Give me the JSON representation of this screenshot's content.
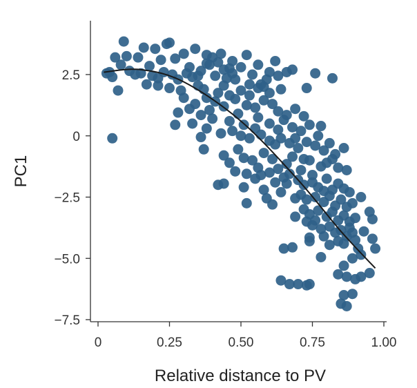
{
  "chart_data": {
    "type": "scatter",
    "xlabel": "Relative distance to PV",
    "ylabel": "PC1",
    "xlim": [
      0,
      1.0
    ],
    "ylim": [
      -7.5,
      4.5
    ],
    "x_ticks": [
      0,
      0.25,
      0.5,
      0.75,
      1.0
    ],
    "x_tick_labels": [
      "0",
      "0.25",
      "0.50",
      "0.75",
      "1.00"
    ],
    "y_ticks": [
      2.5,
      0,
      -2.5,
      -5.0,
      -7.5
    ],
    "y_tick_labels": [
      "2.5",
      "0",
      "−2.5",
      "−5.0",
      "−7.5"
    ],
    "grid": false,
    "legend": "none",
    "colors": {
      "points": "#2f6189",
      "fit_line": "#1a1a1a"
    },
    "fit_curve": {
      "type": "quadratic",
      "description_points": {
        "x": [
          0.02,
          0.15,
          0.3,
          0.5,
          0.7,
          0.85,
          0.97
        ],
        "y": [
          2.6,
          2.7,
          2.2,
          0.6,
          -1.8,
          -3.9,
          -5.4
        ]
      }
    },
    "series": [
      {
        "points": [
          [
            0.09,
            3.85
          ],
          [
            0.25,
            3.8
          ],
          [
            0.24,
            3.75
          ],
          [
            0.16,
            3.6
          ],
          [
            0.2,
            3.55
          ],
          [
            0.34,
            3.55
          ],
          [
            0.3,
            3.35
          ],
          [
            0.43,
            3.35
          ],
          [
            0.52,
            3.3
          ],
          [
            0.38,
            3.3
          ],
          [
            0.1,
            3.25
          ],
          [
            0.06,
            3.2
          ],
          [
            0.14,
            3.2
          ],
          [
            0.22,
            3.1
          ],
          [
            0.27,
            3.15
          ],
          [
            0.4,
            3.2
          ],
          [
            0.47,
            3.05
          ],
          [
            0.62,
            3.05
          ],
          [
            0.46,
            2.75
          ],
          [
            0.18,
            2.85
          ],
          [
            0.32,
            2.8
          ],
          [
            0.39,
            2.9
          ],
          [
            0.44,
            2.7
          ],
          [
            0.5,
            2.8
          ],
          [
            0.13,
            2.5
          ],
          [
            0.03,
            2.55
          ],
          [
            0.05,
            2.4
          ],
          [
            0.08,
            2.9
          ],
          [
            0.11,
            2.65
          ],
          [
            0.15,
            2.55
          ],
          [
            0.19,
            2.45
          ],
          [
            0.21,
            2.35
          ],
          [
            0.23,
            2.6
          ],
          [
            0.26,
            2.5
          ],
          [
            0.28,
            2.3
          ],
          [
            0.31,
            2.55
          ],
          [
            0.33,
            2.4
          ],
          [
            0.36,
            2.65
          ],
          [
            0.41,
            2.45
          ],
          [
            0.45,
            2.35
          ],
          [
            0.48,
            2.3
          ],
          [
            0.54,
            2.5
          ],
          [
            0.57,
            2.1
          ],
          [
            0.59,
            2.3
          ],
          [
            0.63,
            2.45
          ],
          [
            0.66,
            2.6
          ],
          [
            0.68,
            2.7
          ],
          [
            0.76,
            2.55
          ],
          [
            0.82,
            2.35
          ],
          [
            0.73,
            1.95
          ],
          [
            0.04,
            2.6
          ],
          [
            0.17,
            2.1
          ],
          [
            0.21,
            2.05
          ],
          [
            0.25,
            1.95
          ],
          [
            0.29,
            1.85
          ],
          [
            0.35,
            2.05
          ],
          [
            0.37,
            1.9
          ],
          [
            0.42,
            1.75
          ],
          [
            0.44,
            2.05
          ],
          [
            0.5,
            1.85
          ],
          [
            0.53,
            2.1
          ],
          [
            0.56,
            1.95
          ],
          [
            0.6,
            1.75
          ],
          [
            0.64,
            1.9
          ],
          [
            0.07,
            1.85
          ],
          [
            0.3,
            1.55
          ],
          [
            0.34,
            1.3
          ],
          [
            0.38,
            1.55
          ],
          [
            0.41,
            1.4
          ],
          [
            0.44,
            1.2
          ],
          [
            0.48,
            1.5
          ],
          [
            0.52,
            1.25
          ],
          [
            0.55,
            1.15
          ],
          [
            0.58,
            1.45
          ],
          [
            0.61,
            1.3
          ],
          [
            0.63,
            1.0
          ],
          [
            0.66,
            0.85
          ],
          [
            0.69,
            1.1
          ],
          [
            0.72,
            0.8
          ],
          [
            0.36,
            0.85
          ],
          [
            0.32,
            1.1
          ],
          [
            0.28,
            0.95
          ],
          [
            0.4,
            0.7
          ],
          [
            0.46,
            0.6
          ],
          [
            0.49,
            0.9
          ],
          [
            0.51,
            0.45
          ],
          [
            0.56,
            0.75
          ],
          [
            0.6,
            0.5
          ],
          [
            0.65,
            0.65
          ],
          [
            0.68,
            0.35
          ],
          [
            0.71,
            0.2
          ],
          [
            0.74,
            0.45
          ],
          [
            0.78,
            0.4
          ],
          [
            0.33,
            0.5
          ],
          [
            0.27,
            0.45
          ],
          [
            0.38,
            0.3
          ],
          [
            0.43,
            0.1
          ],
          [
            0.47,
            0.2
          ],
          [
            0.5,
            0.0
          ],
          [
            0.53,
            -0.1
          ],
          [
            0.57,
            0.05
          ],
          [
            0.6,
            -0.2
          ],
          [
            0.62,
            -0.35
          ],
          [
            0.64,
            -0.1
          ],
          [
            0.67,
            -0.3
          ],
          [
            0.7,
            -0.5
          ],
          [
            0.73,
            -0.25
          ],
          [
            0.76,
            -0.4
          ],
          [
            0.79,
            -0.6
          ],
          [
            0.81,
            -0.3
          ],
          [
            0.83,
            -0.75
          ],
          [
            0.86,
            -0.5
          ],
          [
            0.05,
            -0.1
          ],
          [
            0.36,
            -0.05
          ],
          [
            0.37,
            -0.55
          ],
          [
            0.44,
            -0.8
          ],
          [
            0.46,
            -1.1
          ],
          [
            0.49,
            -0.55
          ],
          [
            0.51,
            -0.9
          ],
          [
            0.54,
            -1.0
          ],
          [
            0.56,
            -1.3
          ],
          [
            0.58,
            -0.7
          ],
          [
            0.61,
            -0.95
          ],
          [
            0.63,
            -1.35
          ],
          [
            0.66,
            -1.15
          ],
          [
            0.68,
            -0.85
          ],
          [
            0.71,
            -1.4
          ],
          [
            0.74,
            -1.0
          ],
          [
            0.75,
            -1.6
          ],
          [
            0.78,
            -1.25
          ],
          [
            0.8,
            -1.1
          ],
          [
            0.84,
            -1.3
          ],
          [
            0.87,
            -1.4
          ],
          [
            0.82,
            -0.95
          ],
          [
            0.48,
            -1.45
          ],
          [
            0.52,
            -1.55
          ],
          [
            0.55,
            -1.75
          ],
          [
            0.57,
            -1.6
          ],
          [
            0.6,
            -1.5
          ],
          [
            0.62,
            -1.9
          ],
          [
            0.65,
            -1.7
          ],
          [
            0.67,
            -1.55
          ],
          [
            0.7,
            -1.8
          ],
          [
            0.72,
            -2.0
          ],
          [
            0.75,
            -1.9
          ],
          [
            0.77,
            -2.1
          ],
          [
            0.8,
            -1.75
          ],
          [
            0.82,
            -2.2
          ],
          [
            0.84,
            -1.95
          ],
          [
            0.86,
            -2.15
          ],
          [
            0.88,
            -2.3
          ],
          [
            0.42,
            -2.0
          ],
          [
            0.44,
            -1.95
          ],
          [
            0.51,
            -2.1
          ],
          [
            0.58,
            -2.2
          ],
          [
            0.64,
            -2.3
          ],
          [
            0.69,
            -2.55
          ],
          [
            0.71,
            -2.4
          ],
          [
            0.73,
            -2.6
          ],
          [
            0.76,
            -2.5
          ],
          [
            0.79,
            -2.7
          ],
          [
            0.81,
            -2.45
          ],
          [
            0.83,
            -2.85
          ],
          [
            0.85,
            -2.6
          ],
          [
            0.87,
            -2.9
          ],
          [
            0.89,
            -2.75
          ],
          [
            0.92,
            -2.5
          ],
          [
            0.52,
            -2.75
          ],
          [
            0.61,
            -2.8
          ],
          [
            0.72,
            -3.0
          ],
          [
            0.74,
            -3.2
          ],
          [
            0.77,
            -3.05
          ],
          [
            0.8,
            -3.3
          ],
          [
            0.82,
            -3.1
          ],
          [
            0.84,
            -3.45
          ],
          [
            0.86,
            -3.25
          ],
          [
            0.88,
            -3.5
          ],
          [
            0.9,
            -3.35
          ],
          [
            0.95,
            -3.1
          ],
          [
            0.96,
            -3.4
          ],
          [
            0.73,
            -3.5
          ],
          [
            0.75,
            -3.65
          ],
          [
            0.78,
            -3.8
          ],
          [
            0.81,
            -3.7
          ],
          [
            0.83,
            -3.95
          ],
          [
            0.85,
            -3.85
          ],
          [
            0.87,
            -4.1
          ],
          [
            0.89,
            -3.95
          ],
          [
            0.74,
            -4.15
          ],
          [
            0.74,
            -4.3
          ],
          [
            0.79,
            -4.1
          ],
          [
            0.84,
            -4.3
          ],
          [
            0.86,
            -4.4
          ],
          [
            0.91,
            -4.6
          ],
          [
            0.96,
            -4.2
          ],
          [
            0.65,
            -4.6
          ],
          [
            0.68,
            -4.55
          ],
          [
            0.97,
            -4.6
          ],
          [
            0.78,
            -4.95
          ],
          [
            0.89,
            -5.0
          ],
          [
            0.92,
            -4.85
          ],
          [
            0.86,
            -5.3
          ],
          [
            0.84,
            -5.65
          ],
          [
            0.87,
            -5.75
          ],
          [
            0.9,
            -5.85
          ],
          [
            0.92,
            -5.75
          ],
          [
            0.95,
            -5.6
          ],
          [
            0.64,
            -5.9
          ],
          [
            0.67,
            -6.05
          ],
          [
            0.7,
            -6.05
          ],
          [
            0.73,
            -6.1
          ],
          [
            0.74,
            -6.05
          ],
          [
            0.86,
            -6.5
          ],
          [
            0.89,
            -6.45
          ],
          [
            0.85,
            -6.85
          ],
          [
            0.87,
            -6.95
          ],
          [
            0.38,
            2.95
          ],
          [
            0.42,
            3.0
          ],
          [
            0.56,
            2.9
          ],
          [
            0.6,
            2.6
          ],
          [
            0.35,
            2.45
          ],
          [
            0.47,
            2.55
          ],
          [
            0.58,
            2.0
          ],
          [
            0.53,
            1.65
          ],
          [
            0.46,
            1.65
          ],
          [
            0.39,
            1.05
          ],
          [
            0.55,
            0.3
          ],
          [
            0.63,
            0.25
          ],
          [
            0.69,
            -0.1
          ],
          [
            0.77,
            0.0
          ],
          [
            0.72,
            -0.95
          ],
          [
            0.66,
            -1.95
          ],
          [
            0.59,
            -2.55
          ],
          [
            0.79,
            -2.25
          ],
          [
            0.88,
            -3.75
          ],
          [
            0.93,
            -3.9
          ],
          [
            0.81,
            -4.45
          ],
          [
            0.76,
            -3.45
          ],
          [
            0.69,
            -3.3
          ],
          [
            0.9,
            -4.25
          ]
        ]
      }
    ]
  }
}
